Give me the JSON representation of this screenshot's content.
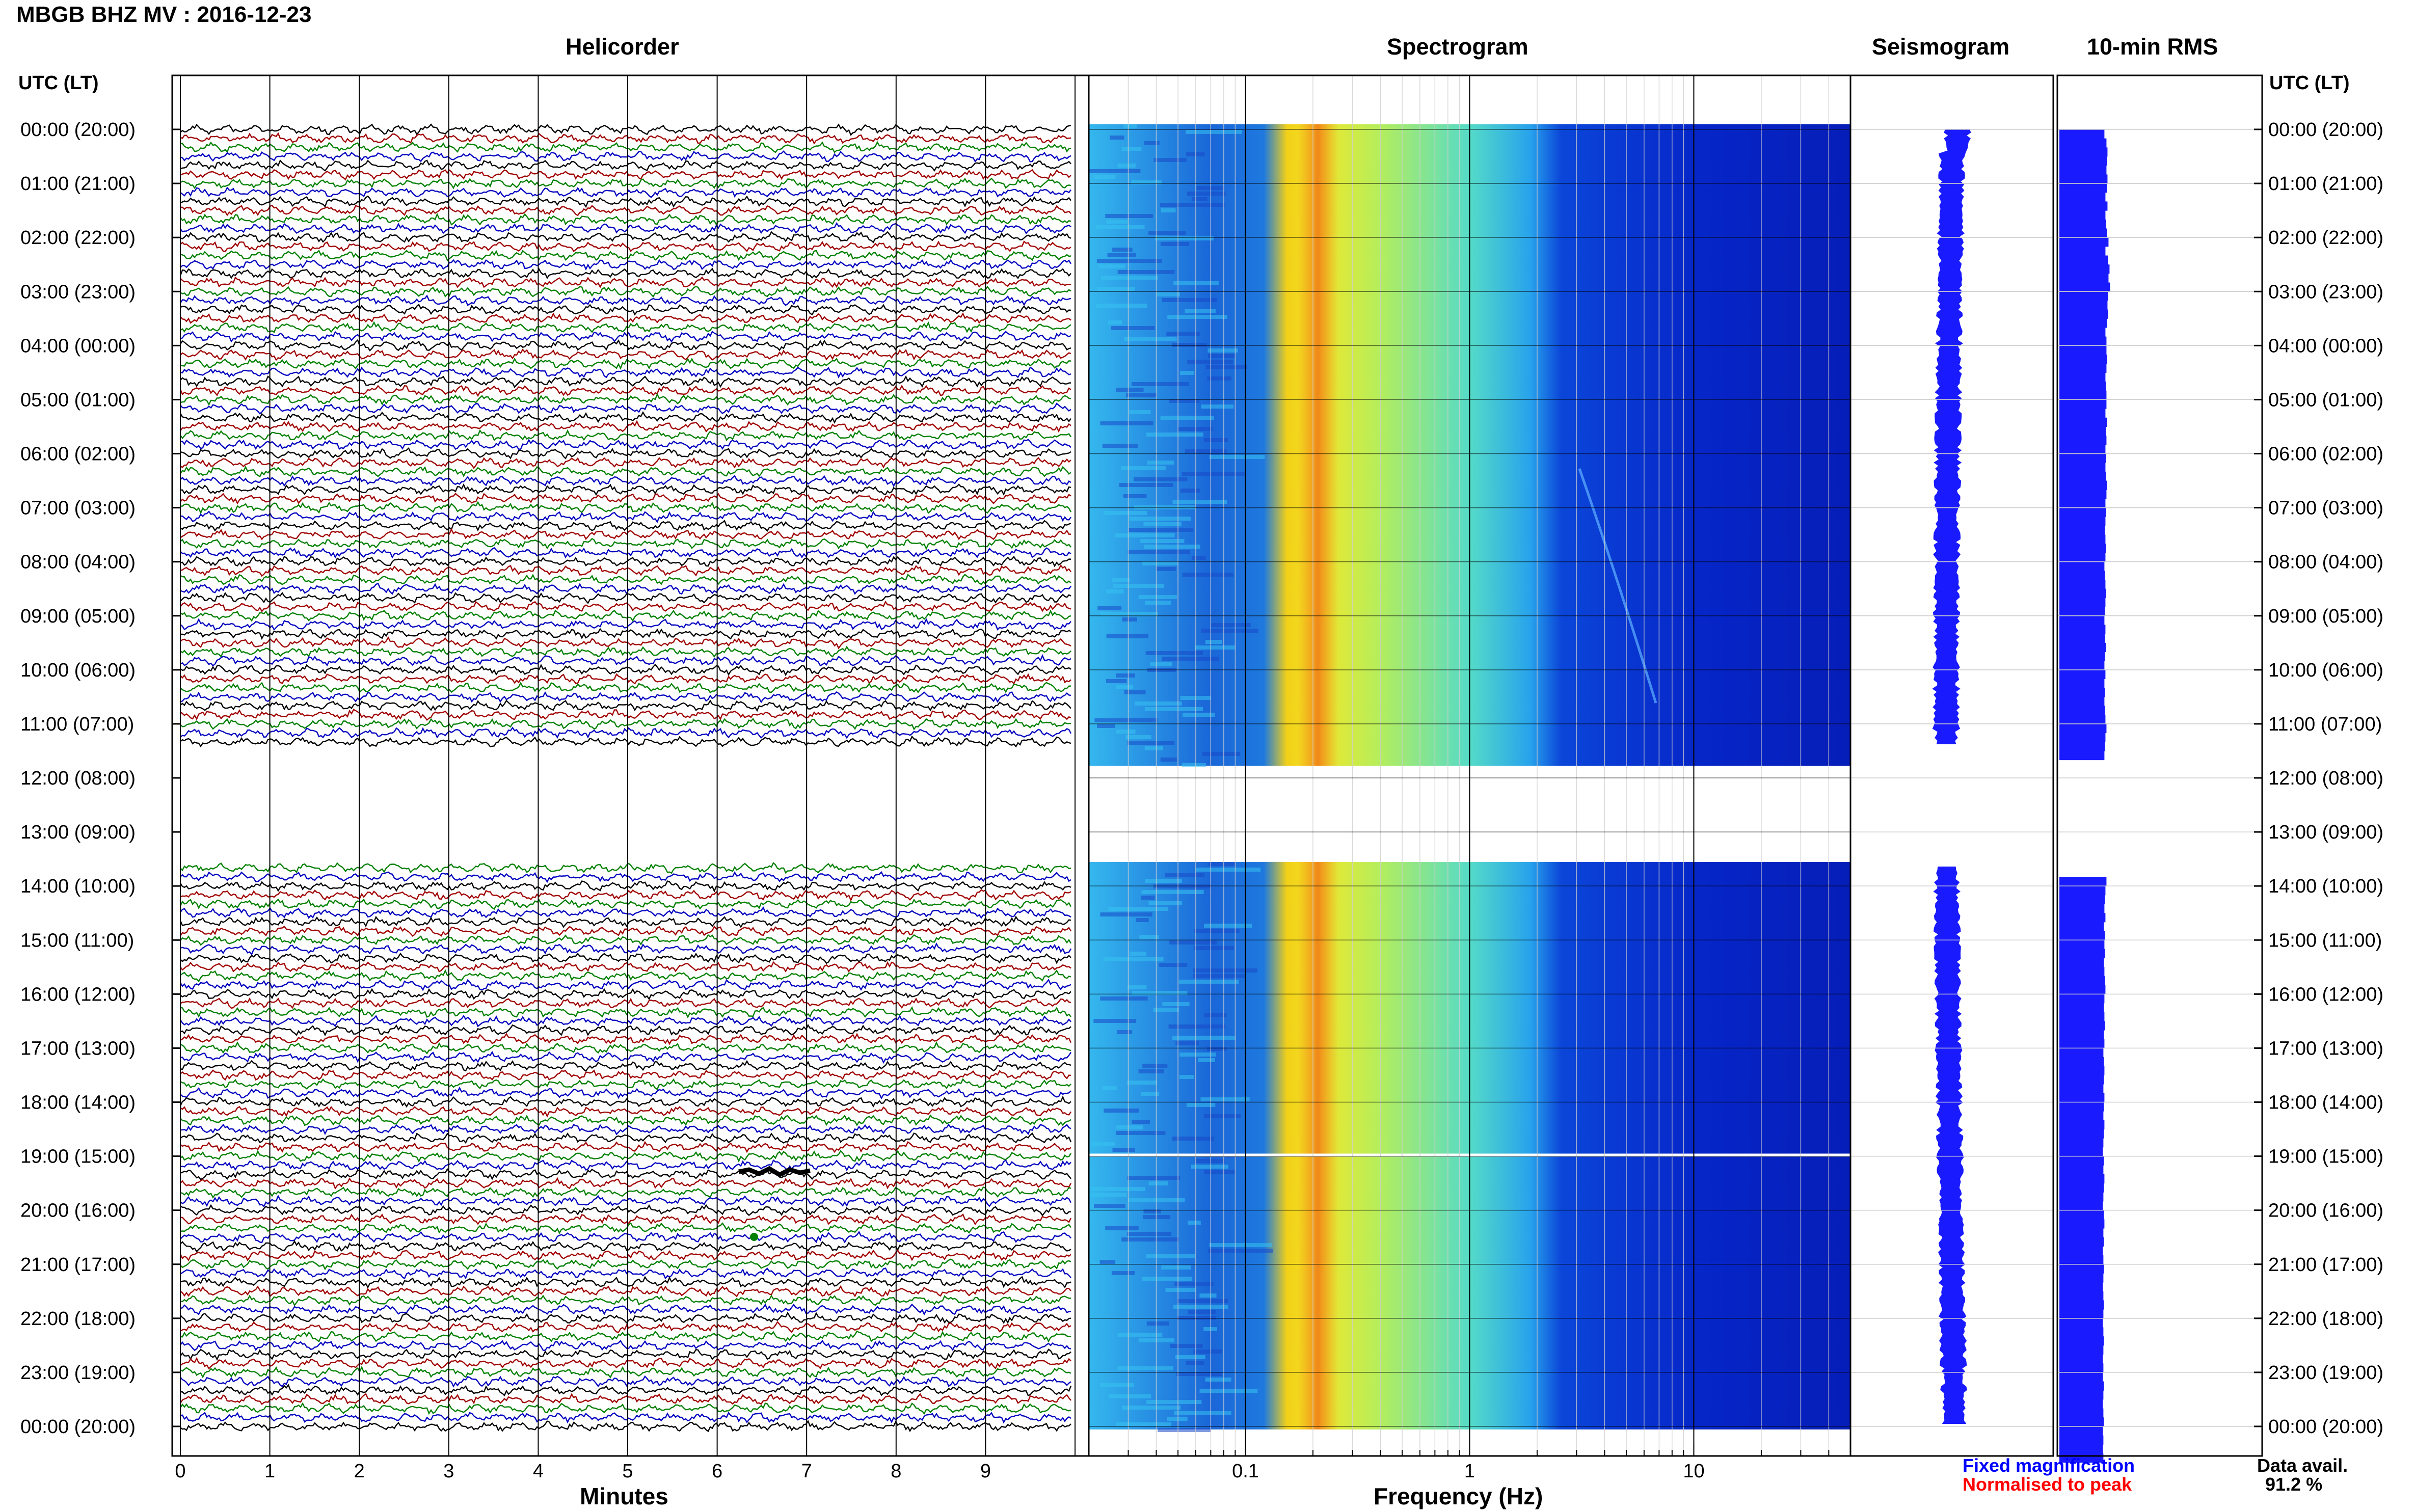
{
  "header": {
    "title": "MBGB BHZ MV : 2016-12-23",
    "axis_time_label_left": "UTC (LT)",
    "axis_time_label_right": "UTC (LT)"
  },
  "panels": {
    "helicorder": {
      "title": "Helicorder",
      "xlabel": "Minutes",
      "xticks": [
        "0",
        "1",
        "2",
        "3",
        "4",
        "5",
        "6",
        "7",
        "8",
        "9"
      ]
    },
    "spectrogram": {
      "title": "Spectrogram",
      "xlabel": "Frequency (Hz)",
      "xticks": [
        "0.1",
        "1",
        "10"
      ]
    },
    "seismogram": {
      "title": "Seismogram"
    },
    "rms": {
      "title": "10-min RMS"
    }
  },
  "legend": {
    "fixed": "Fixed magnification",
    "normalised": "Normalised to peak",
    "avail_label": "Data avail.",
    "avail_value": "91.2 %"
  },
  "colors": {
    "trace_cycle": [
      "#000000",
      "#a00000",
      "#008000",
      "#0000c0"
    ],
    "rms_bar": "#1a1aff",
    "seismogram": "#1a1aff",
    "fixed_text": "#0000ff",
    "normalised_text": "#ff0000"
  },
  "chart_data": [
    {
      "type": "line",
      "title": "Helicorder",
      "xlabel": "Minutes",
      "xlim": [
        0,
        10
      ],
      "rows_per_hour": 6,
      "y_hour_labels": [
        "00:00 (20:00)",
        "01:00 (21:00)",
        "02:00 (22:00)",
        "03:00 (23:00)",
        "04:00 (00:00)",
        "05:00 (01:00)",
        "06:00 (02:00)",
        "07:00 (03:00)",
        "08:00 (04:00)",
        "09:00 (05:00)",
        "10:00 (06:00)",
        "11:00 (07:00)",
        "12:00 (08:00)",
        "13:00 (09:00)",
        "14:00 (10:00)",
        "15:00 (11:00)",
        "16:00 (12:00)",
        "17:00 (13:00)",
        "18:00 (14:00)",
        "19:00 (15:00)",
        "20:00 (16:00)",
        "21:00 (17:00)",
        "22:00 (18:00)",
        "23:00 (19:00)",
        "00:00 (20:00)"
      ],
      "data_gaps_utc_hours": [
        [
          11.4,
          13.65
        ]
      ]
    },
    {
      "type": "heatmap",
      "title": "Spectrogram",
      "xlabel": "Frequency (Hz)",
      "x_scale": "log",
      "xlim": [
        0.02,
        50
      ],
      "colormap": "jet",
      "y": "UTC hour",
      "dominant_band_hz": [
        0.17,
        0.8
      ],
      "data_gaps_utc_hours": [
        [
          11.4,
          13.65
        ]
      ]
    },
    {
      "type": "line",
      "title": "Seismogram",
      "description_values": "Compressed full-day trace, fixed magnification"
    },
    {
      "type": "bar",
      "title": "10-min RMS",
      "orientation": "horizontal",
      "interval_minutes": 10,
      "values_relative": [
        0.78,
        0.82,
        0.84,
        0.83,
        0.82,
        0.84,
        0.83,
        0.8,
        0.84,
        0.8,
        0.81,
        0.83,
        0.86,
        0.8,
        0.85,
        0.88,
        0.86,
        0.89,
        0.85,
        0.84,
        0.85,
        0.83,
        0.8,
        0.82,
        0.82,
        0.83,
        0.82,
        0.8,
        0.81,
        0.82,
        0.82,
        0.8,
        0.83,
        0.81,
        0.82,
        0.8,
        0.81,
        0.8,
        0.81,
        0.83,
        0.82,
        0.8,
        0.81,
        0.8,
        0.79,
        0.8,
        0.81,
        0.8,
        0.78,
        0.79,
        0.8,
        0.81,
        0.8,
        0.79,
        0.78,
        0.8,
        0.79,
        0.81,
        0.79,
        0.78,
        0.8,
        0.78,
        0.79,
        0.78,
        0.79,
        0.8,
        0.82,
        0.8,
        0.79,
        0.78,
        null,
        null,
        null,
        null,
        null,
        null,
        null,
        null,
        null,
        null,
        null,
        null,
        null,
        0.82,
        0.8,
        0.79,
        0.78,
        0.8,
        0.77,
        0.79,
        0.78,
        0.79,
        0.77,
        0.78,
        0.79,
        0.8,
        0.78,
        0.77,
        0.78,
        0.79,
        0.77,
        0.78,
        0.76,
        0.77,
        0.78,
        0.77,
        0.76,
        0.78,
        0.77,
        0.76,
        0.78,
        0.77,
        0.76,
        0.75,
        0.77,
        0.76,
        0.78,
        0.77,
        0.76,
        0.75,
        0.77,
        0.78,
        0.76,
        0.77,
        0.75,
        0.76,
        0.77,
        0.76,
        0.75,
        0.76,
        0.77,
        0.76,
        0.75,
        0.76,
        0.77,
        0.76,
        0.75,
        0.76,
        0.75,
        0.77,
        0.76,
        0.75,
        0.76,
        0.77,
        0.75,
        0.76,
        0.75,
        0.76
      ]
    }
  ]
}
